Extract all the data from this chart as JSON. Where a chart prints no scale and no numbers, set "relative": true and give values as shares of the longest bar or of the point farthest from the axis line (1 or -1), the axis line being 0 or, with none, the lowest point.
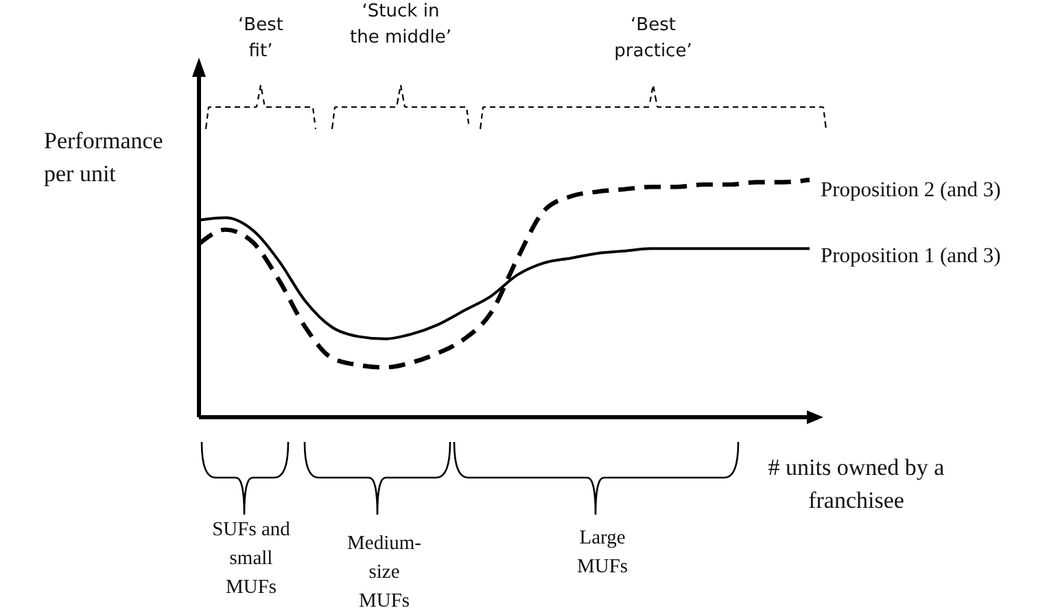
{
  "chart_data": {
    "type": "line",
    "relative": true,
    "ylabel": "Performance\nper unit",
    "xlabel": "# units owned by a\nfranchisee",
    "categories": [
      null,
      null,
      null,
      null,
      null,
      null,
      null,
      null,
      null,
      null,
      null,
      null,
      null,
      null,
      null,
      null,
      null,
      null,
      null,
      null,
      null,
      null,
      null,
      null
    ],
    "series": [
      {
        "name": "Proposition 2 (and 3)",
        "color": "#000000",
        "line_style": "dashed",
        "values": [
          0.73,
          0.79,
          0.74,
          0.58,
          0.38,
          0.25,
          0.22,
          0.21,
          0.23,
          0.27,
          0.33,
          0.44,
          0.67,
          0.87,
          0.93,
          0.95,
          0.96,
          0.97,
          0.97,
          0.98,
          0.98,
          0.99,
          0.99,
          1
        ]
      },
      {
        "name": "Proposition 1 (and 3)",
        "color": "#000000",
        "line_style": "solid",
        "values": [
          0.83,
          0.84,
          0.79,
          0.66,
          0.49,
          0.38,
          0.34,
          0.33,
          0.35,
          0.39,
          0.45,
          0.51,
          0.6,
          0.65,
          0.67,
          0.69,
          0.7,
          0.71,
          0.71,
          0.71,
          0.71,
          0.71,
          0.71,
          0.71
        ]
      }
    ],
    "annotations": [
      "‘Best\nfit’",
      "‘Stuck in\nthe middle’",
      "‘Best\npractice’",
      "SUFs and\nsmall\nMUFs",
      "Medium-\nsize\nMUFs",
      "Large\nMUFs"
    ],
    "marker": "none",
    "legend": false,
    "grid": false,
    "tick_labels": false
  }
}
